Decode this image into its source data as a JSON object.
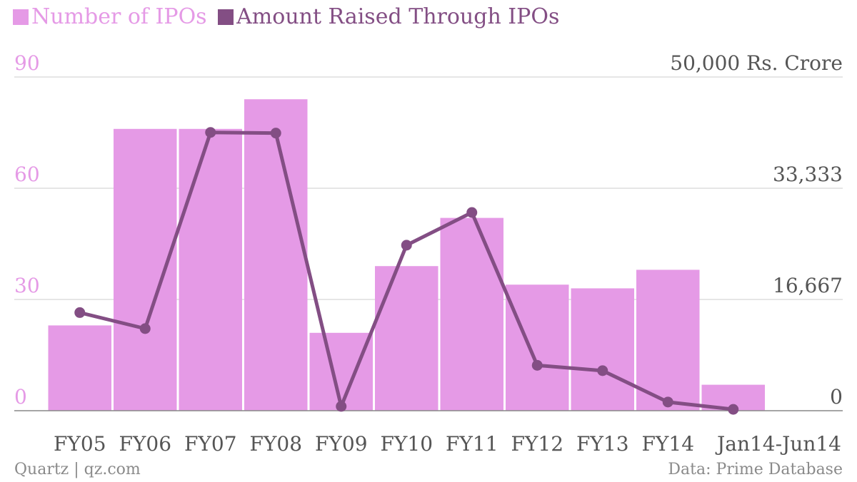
{
  "chart_data": {
    "type": "bar+line",
    "categories": [
      "FY05",
      "FY06",
      "FY07",
      "FY08",
      "FY09",
      "FY10",
      "FY11",
      "FY12",
      "FY13",
      "FY14",
      "Jan14-Jun14"
    ],
    "series": [
      {
        "name": "Number of IPOs",
        "type": "bar",
        "axis": "left",
        "color": "#e59ae6",
        "values": [
          23,
          76,
          76,
          84,
          21,
          39,
          52,
          34,
          33,
          38,
          7
        ]
      },
      {
        "name": "Amount Raised Through IPOs",
        "type": "line",
        "axis": "right",
        "color": "#834e84",
        "values": [
          14700,
          12300,
          41700,
          41600,
          650,
          24800,
          29700,
          6800,
          6000,
          1300,
          200
        ]
      }
    ],
    "y_left": {
      "min": 0,
      "max": 90,
      "ticks": [
        "0",
        "30",
        "60",
        "90"
      ]
    },
    "y_right": {
      "min": 0,
      "max": 50000,
      "ticks": [
        "0",
        "16,667",
        "33,333",
        "50,000 Rs. Crore"
      ],
      "tick_values": [
        0,
        16667,
        33333,
        50000
      ]
    },
    "grid": true,
    "legend_position": "top-left"
  },
  "colors": {
    "bar": "#e59ae6",
    "line": "#834e84",
    "grid": "#dddddd",
    "axis": "#888888",
    "right_ticks": "#555555"
  },
  "footer": {
    "credit": "Quartz | qz.com",
    "source": "Data: Prime Database"
  }
}
